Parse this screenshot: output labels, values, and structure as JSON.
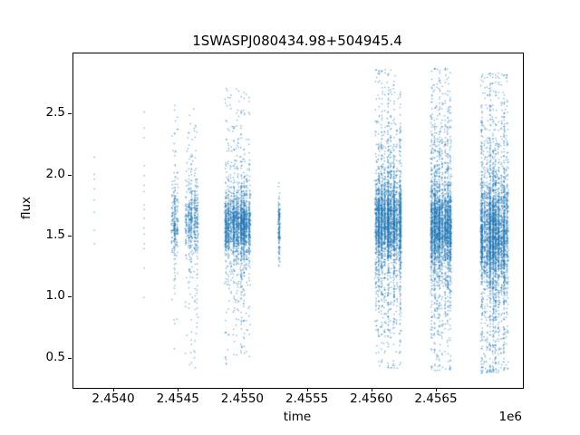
{
  "chart_data": {
    "type": "scatter",
    "title": "1SWASPJ080434.98+504945.4",
    "xlabel": "time",
    "ylabel": "flux",
    "x_offset_label": "1e6",
    "xlim": [
      2453684,
      2457167
    ],
    "ylim": [
      0.26,
      3.0
    ],
    "grid": false,
    "legend": null,
    "marker_color": "#1f77b4",
    "marker_alpha": 0.55,
    "marker_size_px": 1.4,
    "x_ticks": [
      {
        "value": 2454000,
        "label": "2.4540"
      },
      {
        "value": 2454500,
        "label": "2.4545"
      },
      {
        "value": 2455000,
        "label": "2.4550"
      },
      {
        "value": 2455500,
        "label": "2.4555"
      },
      {
        "value": 2456000,
        "label": "2.4560"
      },
      {
        "value": 2456500,
        "label": "2.4565"
      }
    ],
    "y_ticks": [
      {
        "value": 0.5,
        "label": "0.5"
      },
      {
        "value": 1.0,
        "label": "1.0"
      },
      {
        "value": 1.5,
        "label": "1.5"
      },
      {
        "value": 2.0,
        "label": "2.0"
      },
      {
        "value": 2.5,
        "label": "2.5"
      }
    ],
    "clusters": [
      {
        "t": 2453846,
        "half_width": 5,
        "stripes": 1,
        "points_flux": [
          2.15,
          2.01,
          1.97,
          1.89,
          1.8,
          1.7,
          1.55,
          1.44
        ]
      },
      {
        "t": 2454232,
        "half_width": 6,
        "stripes": 1,
        "points_flux": [
          2.52,
          2.39,
          2.31,
          2.08,
          2.0,
          1.92,
          1.87,
          1.76,
          1.72,
          1.65,
          1.57,
          1.52,
          1.44,
          1.4,
          1.24,
          1.0
        ]
      },
      {
        "t": 2454470,
        "half_width": 28,
        "stripes": 3,
        "n": 260,
        "dist": {
          "mean": 1.62,
          "sigma": 0.14,
          "mid_mult": 2.6,
          "frac_core": 0.66,
          "frac_mid": 0.26,
          "lo": 0.45,
          "hi": 2.58
        }
      },
      {
        "t": 2454600,
        "half_width": 56,
        "stripes": 5,
        "n": 520,
        "dist": {
          "mean": 1.63,
          "sigma": 0.14,
          "mid_mult": 2.7,
          "frac_core": 0.64,
          "frac_mid": 0.27,
          "lo": 0.42,
          "hi": 2.65
        }
      },
      {
        "t": 2454955,
        "half_width": 100,
        "stripes": 10,
        "n": 2100,
        "dist": {
          "mean": 1.6,
          "sigma": 0.125,
          "mid_mult": 2.8,
          "frac_core": 0.68,
          "frac_mid": 0.24,
          "lo": 0.44,
          "hi": 2.72
        }
      },
      {
        "t": 2455279,
        "half_width": 5,
        "stripes": 1,
        "n": 150,
        "dist": {
          "mean": 1.58,
          "sigma": 0.13,
          "mid_mult": 1.8,
          "frac_core": 0.8,
          "frac_mid": 0.18,
          "lo": 1.24,
          "hi": 1.98
        }
      },
      {
        "t": 2456122,
        "half_width": 105,
        "stripes": 9,
        "n": 3200,
        "dist": {
          "mean": 1.62,
          "sigma": 0.16,
          "mid_mult": 3.0,
          "frac_core": 0.6,
          "frac_mid": 0.3,
          "lo": 0.42,
          "hi": 2.88
        }
      },
      {
        "t": 2456532,
        "half_width": 82,
        "stripes": 8,
        "n": 2800,
        "dist": {
          "mean": 1.58,
          "sigma": 0.17,
          "mid_mult": 3.0,
          "frac_core": 0.6,
          "frac_mid": 0.3,
          "lo": 0.4,
          "hi": 2.88
        }
      },
      {
        "t": 2456946,
        "half_width": 110,
        "stripes": 10,
        "n": 3600,
        "dist": {
          "mean": 1.52,
          "sigma": 0.21,
          "mid_mult": 2.6,
          "frac_core": 0.58,
          "frac_mid": 0.3,
          "lo": 0.38,
          "hi": 2.85
        }
      }
    ]
  }
}
